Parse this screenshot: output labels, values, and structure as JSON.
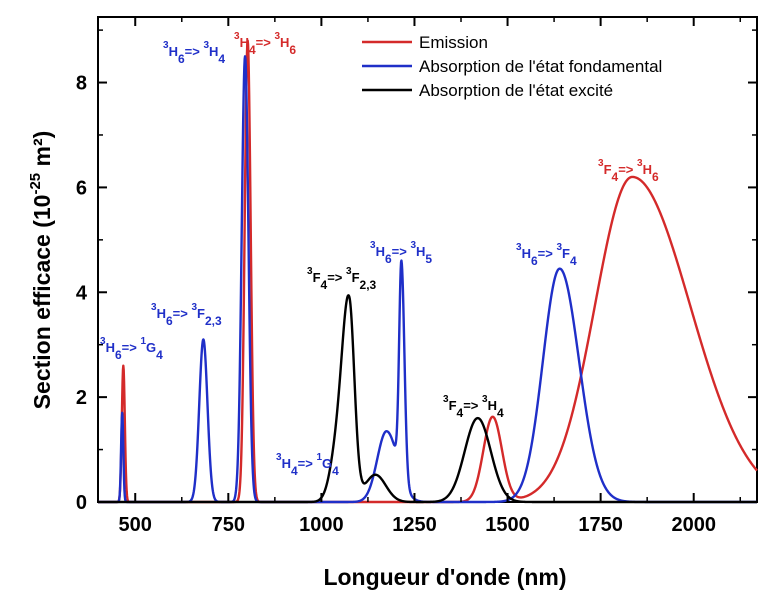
{
  "chart_data": {
    "type": "line",
    "xlabel": "Longueur d'onde (nm)",
    "ylabel_parts": {
      "main": "Section efficace (10",
      "exp": "-25",
      "unit": " m²)"
    },
    "xlim": [
      400,
      2170
    ],
    "ylim": [
      0,
      9.25
    ],
    "xticks": [
      500,
      750,
      1000,
      1250,
      1500,
      1750,
      2000
    ],
    "xtick_labels": [
      "500",
      "750",
      "1000",
      "1250",
      "1500",
      "1750",
      "2000"
    ],
    "yticks": [
      0,
      2,
      4,
      6,
      8
    ],
    "ytick_labels": [
      "0",
      "2",
      "4",
      "6",
      "8"
    ],
    "legend_position": "top-right",
    "series": [
      {
        "name": "Emission",
        "color": "#d42a2a",
        "peaks": [
          {
            "center": 468,
            "height": 2.6,
            "width_left": 4,
            "width_right": 4
          },
          {
            "center": 802,
            "height": 8.8,
            "width_left": 8,
            "width_right": 8
          },
          {
            "center": 1460,
            "height": 1.62,
            "width_left": 25,
            "width_right": 25
          },
          {
            "center": 1835,
            "height": 6.2,
            "width_left": 100,
            "width_right": 155
          }
        ]
      },
      {
        "name": "Absorption de l'état fondamental",
        "color": "#1f2fc8",
        "peaks": [
          {
            "center": 465,
            "height": 1.7,
            "width_left": 3,
            "width_right": 3
          },
          {
            "center": 683,
            "height": 3.1,
            "width_left": 11,
            "width_right": 11
          },
          {
            "center": 795,
            "height": 8.5,
            "width_left": 9,
            "width_right": 9
          },
          {
            "center": 1215,
            "height": 4.05,
            "width_left": 6,
            "width_right": 8
          },
          {
            "center": 1175,
            "height": 1.35,
            "width_left": 25,
            "width_right": 30
          },
          {
            "center": 1640,
            "height": 4.45,
            "width_left": 45,
            "width_right": 52
          }
        ]
      },
      {
        "name": "Absorption de l'état excité",
        "color": "#000000",
        "peaks": [
          {
            "center": 1075,
            "height": 3.55,
            "width_left": 18,
            "width_right": 14
          },
          {
            "center": 1045,
            "height": 1.05,
            "width_left": 20,
            "width_right": 20
          },
          {
            "center": 1145,
            "height": 0.52,
            "width_left": 28,
            "width_right": 28
          },
          {
            "center": 1420,
            "height": 1.6,
            "width_left": 35,
            "width_right": 35
          }
        ]
      }
    ],
    "annotations": [
      {
        "parts": [
          [
            "3",
            "sup"
          ],
          [
            "H",
            "b"
          ],
          [
            "6",
            "sub"
          ],
          [
            "=> ",
            "b"
          ],
          [
            "1",
            "sup"
          ],
          [
            "G",
            "b"
          ],
          [
            "4",
            "sub"
          ]
        ],
        "color": "#1f2fc8"
      },
      {
        "parts": [
          [
            "3",
            "sup"
          ],
          [
            "H",
            "b"
          ],
          [
            "6",
            "sub"
          ],
          [
            "=> ",
            "b"
          ],
          [
            "3",
            "sup"
          ],
          [
            "F",
            "b"
          ],
          [
            "2,3",
            "sub"
          ]
        ],
        "color": "#1f2fc8"
      },
      {
        "parts": [
          [
            "3",
            "sup"
          ],
          [
            "H",
            "b"
          ],
          [
            "6",
            "sub"
          ],
          [
            "=> ",
            "b"
          ],
          [
            "3",
            "sup"
          ],
          [
            "H",
            "b"
          ],
          [
            "4",
            "sub"
          ]
        ],
        "color": "#1f2fc8"
      },
      {
        "parts": [
          [
            "3",
            "sup"
          ],
          [
            "H",
            "b"
          ],
          [
            "4",
            "sub"
          ],
          [
            "=> ",
            "b"
          ],
          [
            "3",
            "sup"
          ],
          [
            "H",
            "b"
          ],
          [
            "6",
            "sub"
          ]
        ],
        "color": "#d42a2a"
      },
      {
        "parts": [
          [
            "3",
            "sup"
          ],
          [
            "H",
            "b"
          ],
          [
            "4",
            "sub"
          ],
          [
            "=> ",
            "b"
          ],
          [
            "1",
            "sup"
          ],
          [
            "G",
            "b"
          ],
          [
            "4",
            "sub"
          ]
        ],
        "color": "#1f2fc8"
      },
      {
        "parts": [
          [
            "3",
            "sup"
          ],
          [
            "F",
            "b"
          ],
          [
            "4",
            "sub"
          ],
          [
            "=> ",
            "b"
          ],
          [
            "3",
            "sup"
          ],
          [
            "F",
            "b"
          ],
          [
            "2,3",
            "sub"
          ]
        ],
        "color": "#000000"
      },
      {
        "parts": [
          [
            "3",
            "sup"
          ],
          [
            "H",
            "b"
          ],
          [
            "6",
            "sub"
          ],
          [
            "=> ",
            "b"
          ],
          [
            "3",
            "sup"
          ],
          [
            "H",
            "b"
          ],
          [
            "5",
            "sub"
          ]
        ],
        "color": "#1f2fc8"
      },
      {
        "parts": [
          [
            "3",
            "sup"
          ],
          [
            "F",
            "b"
          ],
          [
            "4",
            "sub"
          ],
          [
            "=> ",
            "b"
          ],
          [
            "3",
            "sup"
          ],
          [
            "H",
            "b"
          ],
          [
            "4",
            "sub"
          ]
        ],
        "color": "#000000"
      },
      {
        "parts": [
          [
            "3",
            "sup"
          ],
          [
            "H",
            "b"
          ],
          [
            "6",
            "sub"
          ],
          [
            "=> ",
            "b"
          ],
          [
            "3",
            "sup"
          ],
          [
            "F",
            "b"
          ],
          [
            "4",
            "sub"
          ]
        ],
        "color": "#1f2fc8"
      },
      {
        "parts": [
          [
            "3",
            "sup"
          ],
          [
            "F",
            "b"
          ],
          [
            "4",
            "sub"
          ],
          [
            "=> ",
            "b"
          ],
          [
            "3",
            "sup"
          ],
          [
            "H",
            "b"
          ],
          [
            "6",
            "sub"
          ]
        ],
        "color": "#d42a2a"
      }
    ]
  }
}
